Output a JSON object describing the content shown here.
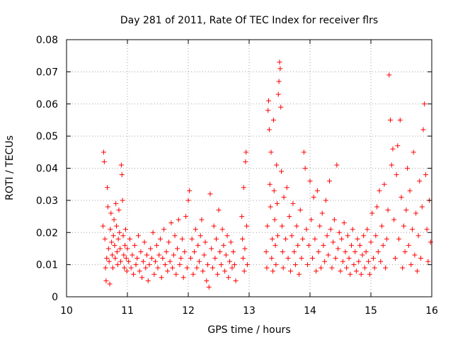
{
  "chart_data": {
    "type": "scatter",
    "title": "Day 281 of 2011, Rate Of TEC Index for receiver flrs",
    "xlabel": "GPS time / hours",
    "ylabel": "ROTI / TECUs",
    "xlim": [
      10,
      16
    ],
    "ylim": [
      0,
      0.08
    ],
    "xticks": [
      10,
      11,
      12,
      13,
      14,
      15,
      16
    ],
    "yticks": [
      0,
      0.01,
      0.02,
      0.03,
      0.04,
      0.05,
      0.06,
      0.07,
      0.08
    ],
    "xtick_labels": [
      "10",
      "11",
      "12",
      "13",
      "14",
      "15",
      "16"
    ],
    "ytick_labels": [
      "0",
      "0.01",
      "0.02",
      "0.03",
      "0.04",
      "0.05",
      "0.06",
      "0.07",
      "0.08"
    ],
    "grid": true,
    "marker": "+",
    "color": "#ff0000",
    "series": [
      {
        "name": "ROTI",
        "points": [
          [
            10.6,
            0.022
          ],
          [
            10.61,
            0.045
          ],
          [
            10.62,
            0.042
          ],
          [
            10.63,
            0.018
          ],
          [
            10.64,
            0.009
          ],
          [
            10.65,
            0.005
          ],
          [
            10.66,
            0.012
          ],
          [
            10.67,
            0.034
          ],
          [
            10.68,
            0.028
          ],
          [
            10.69,
            0.015
          ],
          [
            10.7,
            0.011
          ],
          [
            10.71,
            0.004
          ],
          [
            10.72,
            0.021
          ],
          [
            10.73,
            0.026
          ],
          [
            10.74,
            0.017
          ],
          [
            10.75,
            0.013
          ],
          [
            10.76,
            0.009
          ],
          [
            10.77,
            0.019
          ],
          [
            10.78,
            0.024
          ],
          [
            10.79,
            0.016
          ],
          [
            10.8,
            0.012
          ],
          [
            10.81,
            0.029
          ],
          [
            10.82,
            0.022
          ],
          [
            10.83,
            0.014
          ],
          [
            10.84,
            0.01
          ],
          [
            10.85,
            0.018
          ],
          [
            10.86,
            0.027
          ],
          [
            10.87,
            0.02
          ],
          [
            10.88,
            0.015
          ],
          [
            10.89,
            0.011
          ],
          [
            10.9,
            0.041
          ],
          [
            10.91,
            0.038
          ],
          [
            10.92,
            0.03
          ],
          [
            10.93,
            0.019
          ],
          [
            10.94,
            0.013
          ],
          [
            10.95,
            0.009
          ],
          [
            10.96,
            0.016
          ],
          [
            10.97,
            0.021
          ],
          [
            10.98,
            0.012
          ],
          [
            10.99,
            0.008
          ],
          [
            11.0,
            0.015
          ],
          [
            11.02,
            0.011
          ],
          [
            11.04,
            0.018
          ],
          [
            11.06,
            0.009
          ],
          [
            11.08,
            0.013
          ],
          [
            11.1,
            0.007
          ],
          [
            11.12,
            0.016
          ],
          [
            11.14,
            0.01
          ],
          [
            11.16,
            0.012
          ],
          [
            11.18,
            0.019
          ],
          [
            11.2,
            0.008
          ],
          [
            11.22,
            0.014
          ],
          [
            11.24,
            0.006
          ],
          [
            11.26,
            0.011
          ],
          [
            11.28,
            0.017
          ],
          [
            11.3,
            0.009
          ],
          [
            11.32,
            0.013
          ],
          [
            11.34,
            0.005
          ],
          [
            11.36,
            0.01
          ],
          [
            11.38,
            0.015
          ],
          [
            11.4,
            0.012
          ],
          [
            11.42,
            0.02
          ],
          [
            11.44,
            0.007
          ],
          [
            11.46,
            0.011
          ],
          [
            11.48,
            0.016
          ],
          [
            11.5,
            0.009
          ],
          [
            11.52,
            0.013
          ],
          [
            11.54,
            0.018
          ],
          [
            11.56,
            0.006
          ],
          [
            11.58,
            0.012
          ],
          [
            11.6,
            0.021
          ],
          [
            11.62,
            0.01
          ],
          [
            11.64,
            0.014
          ],
          [
            11.66,
            0.008
          ],
          [
            11.68,
            0.017
          ],
          [
            11.7,
            0.011
          ],
          [
            11.72,
            0.023
          ],
          [
            11.74,
            0.009
          ],
          [
            11.76,
            0.013
          ],
          [
            11.78,
            0.019
          ],
          [
            11.8,
            0.007
          ],
          [
            11.82,
            0.015
          ],
          [
            11.84,
            0.024
          ],
          [
            11.86,
            0.01
          ],
          [
            11.88,
            0.012
          ],
          [
            11.9,
            0.018
          ],
          [
            11.92,
            0.006
          ],
          [
            11.94,
            0.014
          ],
          [
            11.96,
            0.025
          ],
          [
            11.98,
            0.009
          ],
          [
            12.0,
            0.03
          ],
          [
            12.02,
            0.033
          ],
          [
            12.04,
            0.012
          ],
          [
            12.06,
            0.018
          ],
          [
            12.08,
            0.007
          ],
          [
            12.1,
            0.014
          ],
          [
            12.12,
            0.021
          ],
          [
            12.14,
            0.009
          ],
          [
            12.16,
            0.016
          ],
          [
            12.18,
            0.011
          ],
          [
            12.2,
            0.019
          ],
          [
            12.22,
            0.024
          ],
          [
            12.24,
            0.008
          ],
          [
            12.26,
            0.013
          ],
          [
            12.28,
            0.017
          ],
          [
            12.3,
            0.005
          ],
          [
            12.32,
            0.01
          ],
          [
            12.34,
            0.003
          ],
          [
            12.36,
            0.032
          ],
          [
            12.38,
            0.015
          ],
          [
            12.4,
            0.009
          ],
          [
            12.42,
            0.022
          ],
          [
            12.44,
            0.012
          ],
          [
            12.46,
            0.018
          ],
          [
            12.48,
            0.007
          ],
          [
            12.5,
            0.027
          ],
          [
            12.52,
            0.014
          ],
          [
            12.54,
            0.01
          ],
          [
            12.56,
            0.021
          ],
          [
            12.58,
            0.016
          ],
          [
            12.6,
            0.008
          ],
          [
            12.62,
            0.013
          ],
          [
            12.64,
            0.019
          ],
          [
            12.66,
            0.006
          ],
          [
            12.68,
            0.011
          ],
          [
            12.7,
            0.017
          ],
          [
            12.72,
            0.009
          ],
          [
            12.74,
            0.014
          ],
          [
            12.76,
            0.01
          ],
          [
            12.78,
            0.005
          ],
          [
            12.88,
            0.025
          ],
          [
            12.89,
            0.018
          ],
          [
            12.9,
            0.012
          ],
          [
            12.91,
            0.034
          ],
          [
            12.92,
            0.008
          ],
          [
            12.93,
            0.015
          ],
          [
            12.94,
            0.042
          ],
          [
            12.95,
            0.045
          ],
          [
            12.96,
            0.022
          ],
          [
            12.97,
            0.01
          ],
          [
            13.28,
            0.014
          ],
          [
            13.29,
            0.009
          ],
          [
            13.3,
            0.022
          ],
          [
            13.31,
            0.058
          ],
          [
            13.32,
            0.061
          ],
          [
            13.33,
            0.052
          ],
          [
            13.34,
            0.035
          ],
          [
            13.35,
            0.028
          ],
          [
            13.36,
            0.045
          ],
          [
            13.37,
            0.012
          ],
          [
            13.38,
            0.018
          ],
          [
            13.39,
            0.008
          ],
          [
            13.4,
            0.055
          ],
          [
            13.41,
            0.033
          ],
          [
            13.42,
            0.024
          ],
          [
            13.43,
            0.016
          ],
          [
            13.44,
            0.01
          ],
          [
            13.45,
            0.041
          ],
          [
            13.46,
            0.029
          ],
          [
            13.47,
            0.019
          ],
          [
            13.48,
            0.063
          ],
          [
            13.49,
            0.067
          ],
          [
            13.5,
            0.073
          ],
          [
            13.51,
            0.071
          ],
          [
            13.52,
            0.059
          ],
          [
            13.53,
            0.039
          ],
          [
            13.54,
            0.022
          ],
          [
            13.55,
            0.014
          ],
          [
            13.56,
            0.009
          ],
          [
            13.57,
            0.031
          ],
          [
            13.6,
            0.018
          ],
          [
            13.62,
            0.034
          ],
          [
            13.64,
            0.012
          ],
          [
            13.66,
            0.025
          ],
          [
            13.68,
            0.008
          ],
          [
            13.7,
            0.019
          ],
          [
            13.72,
            0.029
          ],
          [
            13.74,
            0.014
          ],
          [
            13.76,
            0.01
          ],
          [
            13.78,
            0.022
          ],
          [
            13.8,
            0.016
          ],
          [
            13.82,
            0.007
          ],
          [
            13.84,
            0.027
          ],
          [
            13.86,
            0.012
          ],
          [
            13.88,
            0.018
          ],
          [
            13.9,
            0.045
          ],
          [
            13.92,
            0.04
          ],
          [
            13.94,
            0.021
          ],
          [
            13.96,
            0.01
          ],
          [
            13.98,
            0.016
          ],
          [
            14.0,
            0.036
          ],
          [
            14.02,
            0.024
          ],
          [
            14.04,
            0.012
          ],
          [
            14.06,
            0.031
          ],
          [
            14.08,
            0.018
          ],
          [
            14.1,
            0.008
          ],
          [
            14.12,
            0.033
          ],
          [
            14.14,
            0.014
          ],
          [
            14.16,
            0.022
          ],
          [
            14.18,
            0.009
          ],
          [
            14.2,
            0.026
          ],
          [
            14.22,
            0.016
          ],
          [
            14.24,
            0.011
          ],
          [
            14.26,
            0.03
          ],
          [
            14.28,
            0.019
          ],
          [
            14.3,
            0.013
          ],
          [
            14.32,
            0.036
          ],
          [
            14.34,
            0.021
          ],
          [
            14.36,
            0.009
          ],
          [
            14.38,
            0.017
          ],
          [
            14.4,
            0.024
          ],
          [
            14.42,
            0.012
          ],
          [
            14.44,
            0.041
          ],
          [
            14.46,
            0.015
          ],
          [
            14.48,
            0.02
          ],
          [
            14.5,
            0.008
          ],
          [
            14.52,
            0.018
          ],
          [
            14.54,
            0.011
          ],
          [
            14.56,
            0.023
          ],
          [
            14.58,
            0.014
          ],
          [
            14.6,
            0.009
          ],
          [
            14.62,
            0.019
          ],
          [
            14.64,
            0.012
          ],
          [
            14.66,
            0.007
          ],
          [
            14.68,
            0.016
          ],
          [
            14.7,
            0.021
          ],
          [
            14.72,
            0.01
          ],
          [
            14.74,
            0.014
          ],
          [
            14.76,
            0.008
          ],
          [
            14.78,
            0.018
          ],
          [
            14.8,
            0.011
          ],
          [
            14.82,
            0.016
          ],
          [
            14.84,
            0.007
          ],
          [
            14.86,
            0.013
          ],
          [
            14.88,
            0.019
          ],
          [
            14.9,
            0.009
          ],
          [
            14.92,
            0.014
          ],
          [
            14.94,
            0.021
          ],
          [
            14.96,
            0.011
          ],
          [
            14.98,
            0.007
          ],
          [
            15.0,
            0.017
          ],
          [
            15.02,
            0.026
          ],
          [
            15.04,
            0.012
          ],
          [
            15.06,
            0.009
          ],
          [
            15.08,
            0.019
          ],
          [
            15.1,
            0.028
          ],
          [
            15.12,
            0.014
          ],
          [
            15.14,
            0.033
          ],
          [
            15.16,
            0.011
          ],
          [
            15.18,
            0.022
          ],
          [
            15.2,
            0.016
          ],
          [
            15.22,
            0.035
          ],
          [
            15.24,
            0.009
          ],
          [
            15.26,
            0.018
          ],
          [
            15.28,
            0.027
          ],
          [
            15.3,
            0.069
          ],
          [
            15.32,
            0.055
          ],
          [
            15.34,
            0.041
          ],
          [
            15.36,
            0.046
          ],
          [
            15.38,
            0.024
          ],
          [
            15.4,
            0.012
          ],
          [
            15.42,
            0.038
          ],
          [
            15.44,
            0.047
          ],
          [
            15.46,
            0.018
          ],
          [
            15.48,
            0.055
          ],
          [
            15.5,
            0.031
          ],
          [
            15.52,
            0.009
          ],
          [
            15.54,
            0.022
          ],
          [
            15.56,
            0.014
          ],
          [
            15.58,
            0.027
          ],
          [
            15.6,
            0.04
          ],
          [
            15.62,
            0.016
          ],
          [
            15.64,
            0.033
          ],
          [
            15.66,
            0.01
          ],
          [
            15.68,
            0.021
          ],
          [
            15.7,
            0.045
          ],
          [
            15.72,
            0.013
          ],
          [
            15.74,
            0.026
          ],
          [
            15.76,
            0.008
          ],
          [
            15.78,
            0.019
          ],
          [
            15.8,
            0.036
          ],
          [
            15.82,
            0.012
          ],
          [
            15.84,
            0.028
          ],
          [
            15.86,
            0.052
          ],
          [
            15.88,
            0.06
          ],
          [
            15.9,
            0.038
          ],
          [
            15.92,
            0.021
          ],
          [
            15.94,
            0.011
          ],
          [
            15.96,
            0.03
          ],
          [
            15.98,
            0.017
          ]
        ]
      }
    ]
  }
}
